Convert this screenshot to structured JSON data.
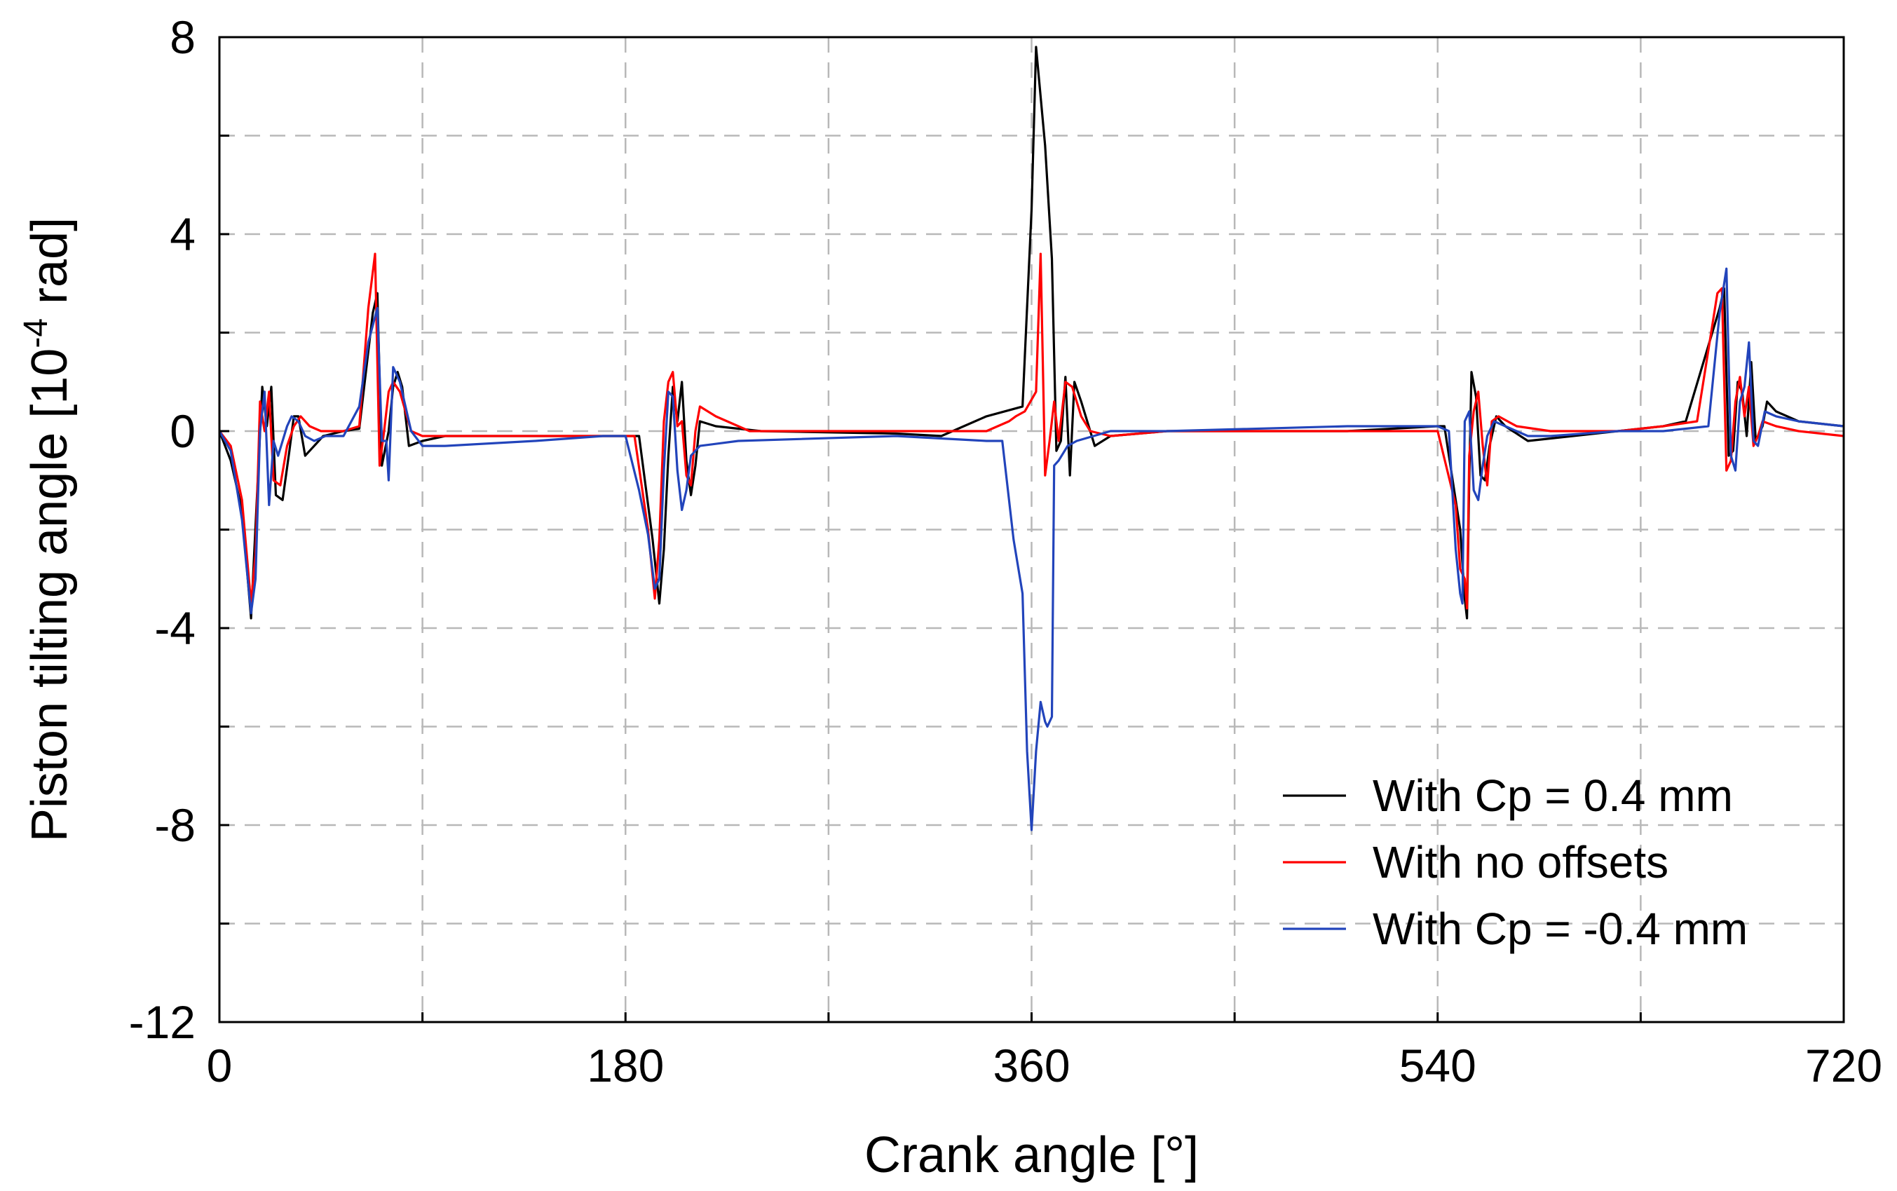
{
  "chart_data": {
    "type": "line",
    "xlabel": "Crank angle [°]",
    "ylabel_parts": [
      "Piston tilting angle [10",
      "-4",
      " rad]"
    ],
    "xlim": [
      0,
      720
    ],
    "ylim": [
      -12,
      8
    ],
    "xticks": [
      0,
      180,
      360,
      540,
      720
    ],
    "xtick_labels": [
      "0",
      "180",
      "360",
      "540",
      "720"
    ],
    "xgrid": [
      90,
      180,
      270,
      360,
      450,
      540,
      630
    ],
    "yticks": [
      -12,
      -8,
      -4,
      0,
      4,
      8
    ],
    "ytick_labels": [
      "-12",
      "-8",
      "-4",
      "0",
      "4",
      "8"
    ],
    "ygrid": [
      -10,
      -8,
      -6,
      -4,
      -2,
      0,
      2,
      4,
      6
    ],
    "grid": true,
    "legend_position": "bottom-right",
    "series": [
      {
        "name": "With Cp = 0.4 mm",
        "color": "#000000",
        "points": [
          [
            0,
            0
          ],
          [
            5,
            -0.6
          ],
          [
            10,
            -1.6
          ],
          [
            14,
            -3.8
          ],
          [
            17,
            -1
          ],
          [
            19,
            0.9
          ],
          [
            21,
            0.1
          ],
          [
            23,
            0.9
          ],
          [
            25,
            -1.3
          ],
          [
            28,
            -1.4
          ],
          [
            31,
            -0.4
          ],
          [
            33,
            0.3
          ],
          [
            35,
            0.3
          ],
          [
            38,
            -0.5
          ],
          [
            42,
            -0.3
          ],
          [
            46,
            -0.1
          ],
          [
            55,
            0
          ],
          [
            62,
            0.05
          ],
          [
            68,
            2.4
          ],
          [
            70,
            2.8
          ],
          [
            72,
            -0.7
          ],
          [
            75,
            0
          ],
          [
            77,
            0.9
          ],
          [
            79,
            1.2
          ],
          [
            81,
            0.9
          ],
          [
            84,
            -0.3
          ],
          [
            90,
            -0.2
          ],
          [
            100,
            -0.1
          ],
          [
            140,
            -0.1
          ],
          [
            180,
            -0.1
          ],
          [
            186,
            -0.1
          ],
          [
            192,
            -2.2
          ],
          [
            195,
            -3.5
          ],
          [
            197,
            -2.4
          ],
          [
            199,
            -0.5
          ],
          [
            201,
            0.9
          ],
          [
            203,
            0.2
          ],
          [
            205,
            1.0
          ],
          [
            207,
            -0.6
          ],
          [
            209,
            -1.3
          ],
          [
            211,
            -0.7
          ],
          [
            213,
            0.2
          ],
          [
            220,
            0.1
          ],
          [
            240,
            0
          ],
          [
            300,
            -0.05
          ],
          [
            320,
            -0.1
          ],
          [
            340,
            0.3
          ],
          [
            356,
            0.5
          ],
          [
            360,
            4.5
          ],
          [
            362,
            7.8
          ],
          [
            366,
            5.8
          ],
          [
            369,
            3.5
          ],
          [
            371,
            -0.4
          ],
          [
            373,
            -0.2
          ],
          [
            375,
            1.1
          ],
          [
            377,
            -0.9
          ],
          [
            379,
            1.0
          ],
          [
            382,
            0.6
          ],
          [
            388,
            -0.3
          ],
          [
            395,
            -0.1
          ],
          [
            420,
            0
          ],
          [
            500,
            0
          ],
          [
            540,
            0.1
          ],
          [
            543,
            0.1
          ],
          [
            550,
            -2.0
          ],
          [
            552,
            -3.4
          ],
          [
            553,
            -3.8
          ],
          [
            554,
            -1.0
          ],
          [
            555,
            1.2
          ],
          [
            557,
            0.7
          ],
          [
            559,
            -0.9
          ],
          [
            561,
            -1.0
          ],
          [
            563,
            -0.3
          ],
          [
            566,
            0.3
          ],
          [
            570,
            0.1
          ],
          [
            580,
            -0.2
          ],
          [
            600,
            -0.1
          ],
          [
            640,
            0.1
          ],
          [
            650,
            0.2
          ],
          [
            665,
            2.5
          ],
          [
            667,
            2.9
          ],
          [
            669,
            -0.5
          ],
          [
            671,
            -0.4
          ],
          [
            673,
            1.0
          ],
          [
            675,
            0.8
          ],
          [
            677,
            -0.1
          ],
          [
            679,
            1.4
          ],
          [
            681,
            -0.2
          ],
          [
            684,
            0.1
          ],
          [
            686,
            0.6
          ],
          [
            690,
            0.4
          ],
          [
            700,
            0.2
          ],
          [
            720,
            0.1
          ]
        ]
      },
      {
        "name": "With no offsets",
        "color": "#ff0000",
        "points": [
          [
            0,
            0
          ],
          [
            5,
            -0.3
          ],
          [
            10,
            -1.4
          ],
          [
            14,
            -3.5
          ],
          [
            16,
            -2.5
          ],
          [
            18,
            0.6
          ],
          [
            20,
            0
          ],
          [
            22,
            0.8
          ],
          [
            24,
            -1.0
          ],
          [
            27,
            -1.1
          ],
          [
            30,
            -0.3
          ],
          [
            33,
            0.1
          ],
          [
            36,
            0.3
          ],
          [
            40,
            0.1
          ],
          [
            45,
            0
          ],
          [
            55,
            0
          ],
          [
            62,
            0.1
          ],
          [
            66,
            2.5
          ],
          [
            69,
            3.6
          ],
          [
            71,
            -0.7
          ],
          [
            73,
            0
          ],
          [
            75,
            0.8
          ],
          [
            77,
            1.0
          ],
          [
            80,
            0.8
          ],
          [
            85,
            0
          ],
          [
            90,
            -0.1
          ],
          [
            100,
            -0.1
          ],
          [
            140,
            -0.1
          ],
          [
            180,
            -0.1
          ],
          [
            184,
            -0.1
          ],
          [
            190,
            -2.0
          ],
          [
            193,
            -3.4
          ],
          [
            195,
            -2.2
          ],
          [
            197,
            0.2
          ],
          [
            199,
            1.0
          ],
          [
            201,
            1.2
          ],
          [
            203,
            0.1
          ],
          [
            205,
            0.2
          ],
          [
            207,
            -0.9
          ],
          [
            209,
            -1.1
          ],
          [
            211,
            0
          ],
          [
            213,
            0.5
          ],
          [
            220,
            0.3
          ],
          [
            235,
            0
          ],
          [
            300,
            0
          ],
          [
            340,
            0
          ],
          [
            350,
            0.2
          ],
          [
            353,
            0.3
          ],
          [
            357,
            0.4
          ],
          [
            362,
            0.8
          ],
          [
            364,
            3.6
          ],
          [
            366,
            -0.9
          ],
          [
            368,
            -0.2
          ],
          [
            370,
            0.6
          ],
          [
            372,
            -0.2
          ],
          [
            375,
            1.0
          ],
          [
            378,
            0.9
          ],
          [
            382,
            0.3
          ],
          [
            386,
            0
          ],
          [
            395,
            -0.1
          ],
          [
            420,
            0
          ],
          [
            500,
            0
          ],
          [
            540,
            0
          ],
          [
            548,
            -1.5
          ],
          [
            550,
            -2.8
          ],
          [
            552,
            -3.0
          ],
          [
            553,
            -3.6
          ],
          [
            554,
            -0.5
          ],
          [
            556,
            0.4
          ],
          [
            558,
            0.8
          ],
          [
            560,
            -0.3
          ],
          [
            562,
            -1.1
          ],
          [
            564,
            0.2
          ],
          [
            567,
            0.3
          ],
          [
            575,
            0.1
          ],
          [
            590,
            0
          ],
          [
            620,
            0
          ],
          [
            640,
            0.1
          ],
          [
            655,
            0.2
          ],
          [
            664,
            2.8
          ],
          [
            666,
            2.9
          ],
          [
            668,
            -0.8
          ],
          [
            670,
            -0.6
          ],
          [
            672,
            0.6
          ],
          [
            674,
            1.1
          ],
          [
            676,
            0.3
          ],
          [
            678,
            0.9
          ],
          [
            680,
            -0.3
          ],
          [
            682,
            -0.1
          ],
          [
            684,
            0.2
          ],
          [
            690,
            0.1
          ],
          [
            700,
            0
          ],
          [
            720,
            -0.1
          ]
        ]
      },
      {
        "name": "With Cp = -0.4 mm",
        "color": "#2244bb",
        "points": [
          [
            0,
            0
          ],
          [
            5,
            -0.4
          ],
          [
            10,
            -1.8
          ],
          [
            14,
            -3.7
          ],
          [
            16,
            -3.0
          ],
          [
            18,
            0
          ],
          [
            20,
            0.8
          ],
          [
            22,
            -1.5
          ],
          [
            24,
            -0.2
          ],
          [
            26,
            -0.5
          ],
          [
            30,
            0.1
          ],
          [
            32,
            0.3
          ],
          [
            35,
            0.2
          ],
          [
            38,
            -0.1
          ],
          [
            42,
            -0.2
          ],
          [
            47,
            -0.1
          ],
          [
            55,
            -0.1
          ],
          [
            62,
            0.5
          ],
          [
            66,
            1.8
          ],
          [
            70,
            2.5
          ],
          [
            72,
            -0.2
          ],
          [
            74,
            -0.2
          ],
          [
            75,
            -1.0
          ],
          [
            77,
            1.3
          ],
          [
            80,
            1.0
          ],
          [
            85,
            0
          ],
          [
            90,
            -0.3
          ],
          [
            100,
            -0.3
          ],
          [
            140,
            -0.2
          ],
          [
            170,
            -0.1
          ],
          [
            180,
            -0.1
          ],
          [
            186,
            -1.2
          ],
          [
            190,
            -2.1
          ],
          [
            193,
            -3.2
          ],
          [
            195,
            -3.0
          ],
          [
            197,
            -0.8
          ],
          [
            199,
            0.8
          ],
          [
            201,
            0.7
          ],
          [
            203,
            -0.8
          ],
          [
            205,
            -1.6
          ],
          [
            207,
            -1.2
          ],
          [
            209,
            -0.5
          ],
          [
            213,
            -0.3
          ],
          [
            230,
            -0.2
          ],
          [
            300,
            -0.1
          ],
          [
            340,
            -0.2
          ],
          [
            347,
            -0.2
          ],
          [
            352,
            -2.2
          ],
          [
            356,
            -3.3
          ],
          [
            358,
            -6.5
          ],
          [
            360,
            -8.1
          ],
          [
            362,
            -6.5
          ],
          [
            364,
            -5.5
          ],
          [
            366,
            -5.9
          ],
          [
            367,
            -6.0
          ],
          [
            369,
            -5.8
          ],
          [
            370,
            -0.7
          ],
          [
            372,
            -0.6
          ],
          [
            376,
            -0.3
          ],
          [
            380,
            -0.2
          ],
          [
            395,
            0
          ],
          [
            420,
            0
          ],
          [
            500,
            0.1
          ],
          [
            540,
            0.1
          ],
          [
            545,
            0
          ],
          [
            548,
            -2.4
          ],
          [
            550,
            -3.3
          ],
          [
            551,
            -3.5
          ],
          [
            552,
            0.2
          ],
          [
            554,
            0.4
          ],
          [
            556,
            -1.2
          ],
          [
            558,
            -1.4
          ],
          [
            560,
            -0.7
          ],
          [
            562,
            -0.1
          ],
          [
            565,
            0.2
          ],
          [
            570,
            0.1
          ],
          [
            580,
            -0.1
          ],
          [
            590,
            -0.1
          ],
          [
            620,
            0
          ],
          [
            640,
            0
          ],
          [
            660,
            0.1
          ],
          [
            665,
            2.4
          ],
          [
            668,
            3.3
          ],
          [
            670,
            -0.5
          ],
          [
            672,
            -0.8
          ],
          [
            674,
            0.6
          ],
          [
            676,
            0.9
          ],
          [
            678,
            1.8
          ],
          [
            680,
            -0.2
          ],
          [
            682,
            -0.3
          ],
          [
            685,
            0.4
          ],
          [
            690,
            0.3
          ],
          [
            700,
            0.2
          ],
          [
            720,
            0.1
          ]
        ]
      }
    ]
  }
}
